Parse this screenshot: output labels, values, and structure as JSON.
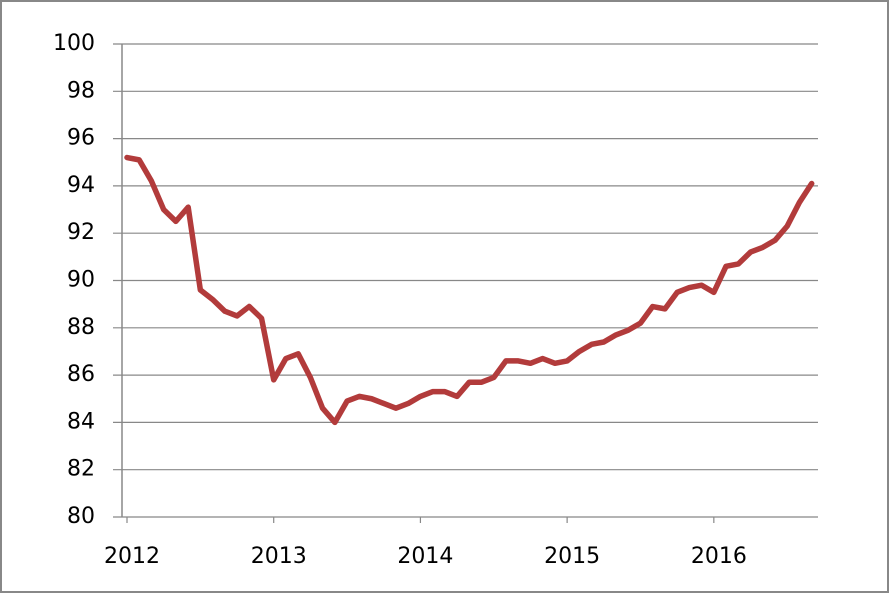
{
  "chart_data": {
    "type": "line",
    "x": [
      2012,
      2012.083,
      2012.167,
      2012.25,
      2012.333,
      2012.417,
      2012.5,
      2012.583,
      2012.667,
      2012.75,
      2012.833,
      2012.917,
      2013,
      2013.083,
      2013.167,
      2013.25,
      2013.333,
      2013.417,
      2013.5,
      2013.583,
      2013.667,
      2013.75,
      2013.833,
      2013.917,
      2014,
      2014.083,
      2014.167,
      2014.25,
      2014.333,
      2014.417,
      2014.5,
      2014.583,
      2014.667,
      2014.75,
      2014.833,
      2014.917,
      2015,
      2015.083,
      2015.167,
      2015.25,
      2015.333,
      2015.417,
      2015.5,
      2015.583,
      2015.667,
      2015.75,
      2015.833,
      2015.917,
      2016,
      2016.083,
      2016.167,
      2016.25,
      2016.333,
      2016.417,
      2016.5,
      2016.583,
      2016.667
    ],
    "series": [
      {
        "color": "#b23b3b",
        "values": [
          95.2,
          95.1,
          94.2,
          93.0,
          92.5,
          93.1,
          89.6,
          89.2,
          88.7,
          88.5,
          88.9,
          88.4,
          85.8,
          86.7,
          86.9,
          85.9,
          84.6,
          84.0,
          84.9,
          85.1,
          85.0,
          84.8,
          84.6,
          84.8,
          85.1,
          85.3,
          85.3,
          85.1,
          85.7,
          85.7,
          85.9,
          86.6,
          86.6,
          86.5,
          86.7,
          86.5,
          86.6,
          87.0,
          87.3,
          87.4,
          87.7,
          87.9,
          88.2,
          88.9,
          88.8,
          89.5,
          89.7,
          89.8,
          89.5,
          90.6,
          90.7,
          91.2,
          91.4,
          91.7,
          92.3,
          93.3,
          94.1
        ]
      }
    ],
    "xlim": [
      2012,
      2016.71
    ],
    "xticks": [
      2012,
      2013,
      2014,
      2015,
      2016
    ],
    "ylim": [
      80,
      100
    ],
    "yticks": [
      80,
      82,
      84,
      86,
      88,
      90,
      92,
      94,
      96,
      98,
      100
    ],
    "grid": true
  }
}
